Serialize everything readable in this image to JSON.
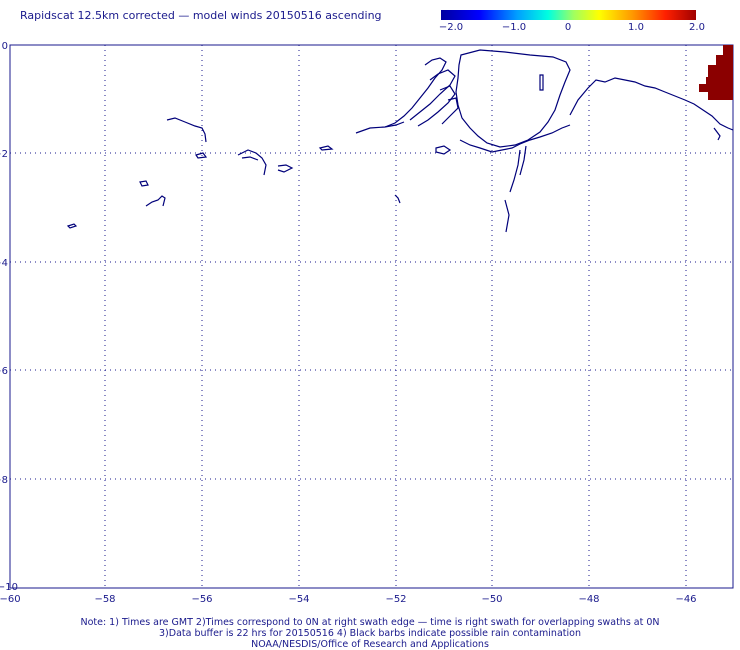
{
  "title": "Rapidscat 12.5km corrected — model winds 20150516 ascending",
  "colorbar": {
    "ticks": [
      "−2.0",
      "−1.0",
      "0",
      "1.0",
      "2.0"
    ],
    "colors": [
      "#0000a0",
      "#0000ff",
      "#00ffe0",
      "#ffff00",
      "#ff9900",
      "#a00000"
    ]
  },
  "axes": {
    "x_ticks": [
      "−60",
      "−58",
      "−56",
      "−54",
      "−52",
      "−50",
      "−48",
      "−46"
    ],
    "y_ticks": [
      "0",
      "−2",
      "−4",
      "−6",
      "−8",
      "−10"
    ]
  },
  "notes": {
    "line1": "Note: 1) Times are GMT 2)Times correspond to 0N at right swath edge — time is right swath for overlapping swaths at 0N",
    "line2": "3)Data buffer is 22 hrs for 20150516 4) Black barbs indicate possible rain contamination",
    "line3": "NOAA/NESDIS/Office of Research and Applications"
  },
  "colors": {
    "coast": "#00007a",
    "grid": "#1a1a8c",
    "data": "#8b0000"
  }
}
